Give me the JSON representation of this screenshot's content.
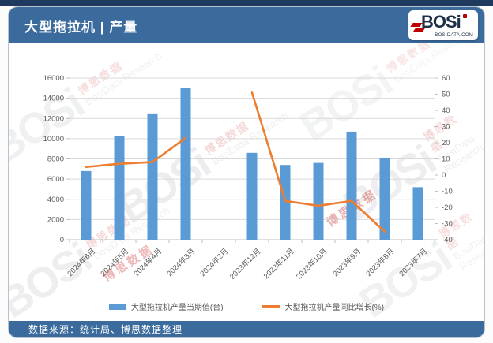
{
  "page": {
    "header": {
      "title": "大型拖拉机 | 产量"
    },
    "logo": {
      "brand": "BOSi",
      "site": "BOSIDATA.COM"
    },
    "footer": {
      "source": "数据来源：统计局、博思数据整理"
    },
    "watermark": {
      "brand": "BOSi",
      "cn": "博思数据",
      "en": "BosiData Research"
    }
  },
  "colors": {
    "header_bg": "#3b6b9c",
    "top_strip": "#1e3a5f",
    "bar": "#5b9bd5",
    "line": "#ed7d31",
    "grid": "#d9d9d9",
    "axis_line": "#bfbfbf",
    "axis_text": "#595959",
    "logo_red": "#c00000"
  },
  "chart_data": {
    "type": "bar",
    "title": "大型拖拉机 | 产量",
    "categories": [
      "2024年6月",
      "2024年5月",
      "2024年4月",
      "2024年3月",
      "2024年2月",
      "2023年12月",
      "2023年11月",
      "2023年10月",
      "2023年9月",
      "2023年8月",
      "2023年7月"
    ],
    "series": [
      {
        "name": "大型拖拉机产量当期值(台)",
        "type": "bar",
        "yaxis": "left",
        "color": "#5b9bd5",
        "values": [
          6800,
          10300,
          12500,
          15000,
          null,
          8600,
          7400,
          7600,
          10700,
          8100,
          5200
        ]
      },
      {
        "name": "大型拖拉机产量同比增长(%)",
        "type": "line",
        "yaxis": "right",
        "color": "#ed7d31",
        "values": [
          5,
          7,
          8,
          23,
          null,
          51,
          -16,
          -19,
          -16,
          -35,
          null
        ]
      }
    ],
    "left_axis": {
      "min": 0,
      "max": 16000,
      "step": 2000,
      "ticks": [
        0,
        2000,
        4000,
        6000,
        8000,
        10000,
        12000,
        14000,
        16000
      ]
    },
    "right_axis": {
      "min": -40,
      "max": 60,
      "step": 10,
      "ticks": [
        -40,
        -30,
        -20,
        -10,
        0,
        10,
        20,
        30,
        40,
        50,
        60
      ]
    },
    "grid": "horizontal",
    "legend_position": "bottom"
  }
}
